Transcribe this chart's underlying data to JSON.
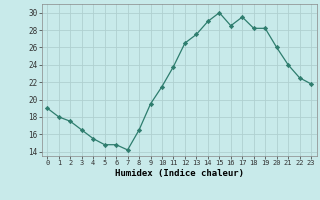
{
  "x": [
    0,
    1,
    2,
    3,
    4,
    5,
    6,
    7,
    8,
    9,
    10,
    11,
    12,
    13,
    14,
    15,
    16,
    17,
    18,
    19,
    20,
    21,
    22,
    23
  ],
  "y": [
    19.0,
    18.0,
    17.5,
    16.5,
    15.5,
    14.8,
    14.8,
    14.2,
    16.5,
    19.5,
    21.5,
    23.8,
    26.5,
    27.5,
    29.0,
    30.0,
    28.5,
    29.5,
    28.2,
    28.2,
    26.0,
    24.0,
    22.5,
    21.8
  ],
  "line_color": "#2e7d6e",
  "marker": "D",
  "marker_size": 2.2,
  "bg_color": "#c8eaea",
  "grid_color": "#b0d0d0",
  "xlabel": "Humidex (Indice chaleur)",
  "ylabel_ticks": [
    14,
    16,
    18,
    20,
    22,
    24,
    26,
    28,
    30
  ],
  "xlim": [
    -0.5,
    23.5
  ],
  "ylim": [
    13.5,
    31
  ],
  "xtick_labels": [
    "0",
    "1",
    "2",
    "3",
    "4",
    "5",
    "6",
    "7",
    "8",
    "9",
    "10",
    "11",
    "12",
    "13",
    "14",
    "15",
    "16",
    "17",
    "18",
    "19",
    "20",
    "21",
    "22",
    "23"
  ]
}
